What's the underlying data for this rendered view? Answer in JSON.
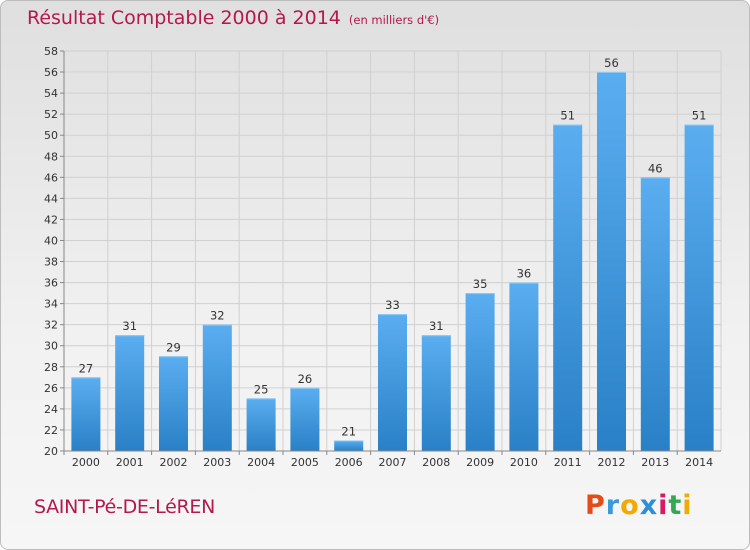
{
  "header": {
    "title": "Résultat Comptable 2000 à 2014",
    "subtitle": "(en milliers d'€)"
  },
  "footer": {
    "commune": "SAINT-Pé-DE-LéREN",
    "logo": "Proxiti"
  },
  "colors": {
    "title": "#b3194b",
    "bar_light": "#5aaef0",
    "bar_dark": "#2a80c6",
    "logo_letters": [
      "#e64a19",
      "#3a9ad9",
      "#f2a900",
      "#2e8fd6",
      "#d81b60",
      "#34a853",
      "#f2a900"
    ]
  },
  "chart_data": {
    "type": "bar",
    "title": "Résultat Comptable 2000 à 2014",
    "subtitle": "(en milliers d'€)",
    "categories": [
      "2000",
      "2001",
      "2002",
      "2003",
      "2004",
      "2005",
      "2006",
      "2007",
      "2008",
      "2009",
      "2010",
      "2011",
      "2012",
      "2013",
      "2014"
    ],
    "values": [
      27,
      31,
      29,
      32,
      25,
      26,
      21,
      33,
      31,
      35,
      36,
      51,
      56,
      46,
      51
    ],
    "ylim": [
      20,
      58
    ],
    "yticks": [
      20,
      22,
      24,
      26,
      28,
      30,
      32,
      34,
      36,
      38,
      40,
      42,
      44,
      46,
      48,
      50,
      52,
      54,
      56,
      58
    ],
    "grid": true,
    "data_labels": true
  }
}
